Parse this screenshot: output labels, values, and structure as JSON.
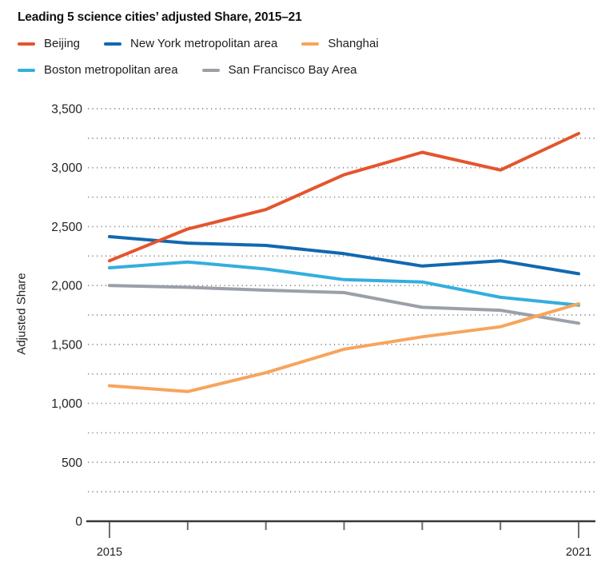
{
  "chart_data": {
    "type": "line",
    "title": "Leading 5 science cities’ adjusted Share, 2015–21",
    "ylabel": "Adjusted Share",
    "xlabel": "",
    "x": [
      2015,
      2016,
      2017,
      2018,
      2019,
      2020,
      2021
    ],
    "x_tick_labels": [
      "2015",
      "2021"
    ],
    "ylim": [
      0,
      3500
    ],
    "y_major_ticks": [
      0,
      500,
      1000,
      1500,
      2000,
      2500,
      3000,
      3500
    ],
    "y_tick_labels": [
      "0",
      "500",
      "1,000",
      "1,500",
      "2,000",
      "2,500",
      "3,000",
      "3,500"
    ],
    "grid": "dotted horizontal gridlines every 250 units",
    "grid_interval": 250,
    "legend_position": "top",
    "series": [
      {
        "name": "Beijing",
        "color": "#E4552D",
        "values": [
          2210,
          2480,
          2645,
          2940,
          3130,
          2980,
          3290
        ]
      },
      {
        "name": "New York metropolitan area",
        "color": "#1268B0",
        "values": [
          2415,
          2360,
          2340,
          2270,
          2165,
          2210,
          2100
        ]
      },
      {
        "name": "Shanghai",
        "color": "#F7A55C",
        "values": [
          1150,
          1100,
          1260,
          1460,
          1565,
          1650,
          1845
        ]
      },
      {
        "name": "Boston metropolitan area",
        "color": "#34AEDE",
        "values": [
          2150,
          2200,
          2140,
          2050,
          2030,
          1900,
          1833
        ]
      },
      {
        "name": "San Francisco Bay Area",
        "color": "#9BA0A8",
        "values": [
          2000,
          1985,
          1960,
          1940,
          1815,
          1790,
          1680
        ]
      }
    ],
    "colors": {
      "axis": "#383838",
      "tick": "#6e6e6e",
      "grid_dot": "#8b8b8b",
      "text": "#231f20"
    }
  }
}
